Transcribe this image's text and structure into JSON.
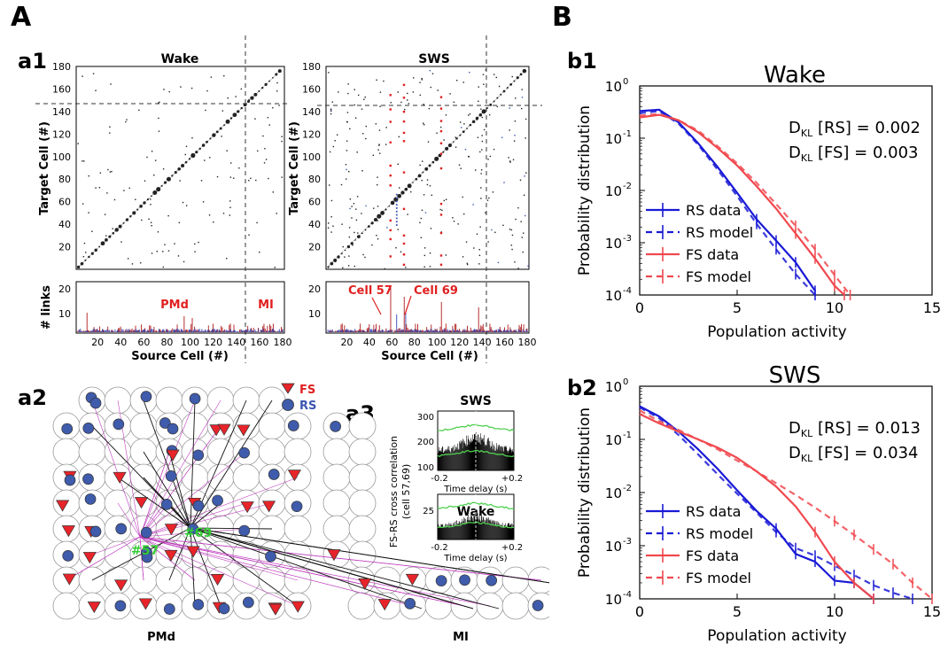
{
  "labels": {
    "A": "A",
    "B": "B",
    "a1": "a1",
    "a2": "a2",
    "a3": "a3",
    "b1": "b1",
    "b2": "b2"
  },
  "a1": {
    "wake_title": "Wake",
    "sws_title": "SWS",
    "ylabel": "Target Cell (#)",
    "xlabel": "Source Cell (#)",
    "links_label": "# links",
    "yticks": [
      "20",
      "40",
      "60",
      "80",
      "100",
      "120",
      "140",
      "160",
      "180"
    ],
    "xticks": [
      "20",
      "40",
      "60",
      "80",
      "100",
      "120",
      "140",
      "160",
      "180"
    ],
    "links_ticks_wake": [
      "10",
      "20"
    ],
    "links_ticks_sws": [
      "10",
      "20"
    ],
    "pmd_label": "PMd",
    "mi_label": "MI",
    "cell57_label": "Cell 57",
    "cell69_label": "Cell 69",
    "boundary_cell": 145
  },
  "a2": {
    "legend_fs": "FS",
    "legend_rs": "RS",
    "label_69": "#69",
    "label_57": "#57",
    "pmd": "PMd",
    "mi": "MI"
  },
  "a3": {
    "ylabel_line1": "FS-RS cross correlation",
    "ylabel_line2": "(cell 57,69)",
    "sws_title": "SWS",
    "wake_title": "Wake",
    "xlabel": "Time delay   (s)",
    "xticks": [
      "-0.2",
      "+0.2"
    ],
    "sws_yticks": [
      "300",
      "200",
      "100"
    ],
    "wake_yticks": [
      "25"
    ]
  },
  "colors": {
    "rs": "#1a1ad6",
    "fs": "#f0494f",
    "red_mark": "#e02020",
    "blue_mark": "#3c55b0",
    "green": "#40c040",
    "node_rs": "#3f5bab",
    "node_fs": "#e8242a",
    "magenta": "#c040c0"
  },
  "chart_data": [
    {
      "type": "line",
      "title": "Wake",
      "xlabel": "Population activity",
      "ylabel": "Probability distribution",
      "yscale": "log",
      "xlim": [
        0,
        15
      ],
      "ylim": [
        0.0001,
        1
      ],
      "xticks": [
        "0",
        "5",
        "10",
        "15"
      ],
      "yticks": [
        "10",
        "10",
        "10",
        "10",
        "10"
      ],
      "ytick_exps": [
        "0",
        "-1",
        "-2",
        "-3",
        "-4"
      ],
      "annotations": [
        "D",
        "KL",
        " [RS] = 0.002",
        " [FS] = 0.003"
      ],
      "legend_position": "bottom-left",
      "series": [
        {
          "name": "RS data",
          "style": "solid",
          "color": "#1a1ad6",
          "x": [
            0,
            1,
            2,
            3,
            4,
            5,
            6,
            7,
            8,
            9
          ],
          "y": [
            0.33,
            0.35,
            0.2,
            0.08,
            0.028,
            0.009,
            0.0028,
            0.0011,
            0.00042,
            0.00012
          ]
        },
        {
          "name": "RS model",
          "style": "dashed",
          "color": "#1a1ad6",
          "x": [
            0,
            1,
            2,
            3,
            4,
            5,
            6,
            7,
            8,
            9
          ],
          "y": [
            0.3,
            0.33,
            0.19,
            0.075,
            0.025,
            0.0078,
            0.0023,
            0.00075,
            0.00025,
            0.0001
          ]
        },
        {
          "name": "FS data",
          "style": "solid",
          "color": "#f0494f",
          "x": [
            0,
            1,
            2,
            3,
            4,
            5,
            6,
            7,
            8,
            9,
            10,
            10.5
          ],
          "y": [
            0.25,
            0.28,
            0.22,
            0.13,
            0.065,
            0.03,
            0.012,
            0.0045,
            0.0015,
            0.0005,
            0.00015,
            0.0001
          ]
        },
        {
          "name": "FS model",
          "style": "dashed",
          "color": "#f0494f",
          "x": [
            0,
            1,
            2,
            3,
            4,
            5,
            6,
            7,
            8,
            9,
            10,
            10.8
          ],
          "y": [
            0.27,
            0.29,
            0.22,
            0.14,
            0.07,
            0.033,
            0.014,
            0.0055,
            0.0021,
            0.00075,
            0.00024,
            0.0001
          ]
        }
      ]
    },
    {
      "type": "line",
      "title": "SWS",
      "xlabel": "Population activity",
      "ylabel": "Probability distribution",
      "yscale": "log",
      "xlim": [
        0,
        15
      ],
      "ylim": [
        0.0001,
        1
      ],
      "xticks": [
        "0",
        "5",
        "10",
        "15"
      ],
      "yticks": [
        "10",
        "10",
        "10",
        "10",
        "10"
      ],
      "ytick_exps": [
        "0",
        "-1",
        "-2",
        "-3",
        "-4"
      ],
      "annotations": [
        "D",
        "KL",
        " [RS] = 0.013",
        " [FS] = 0.034"
      ],
      "legend_position": "bottom-left",
      "series": [
        {
          "name": "RS data",
          "style": "solid",
          "color": "#1a1ad6",
          "x": [
            0,
            1,
            2,
            3,
            4,
            5,
            6,
            7,
            8,
            9,
            10,
            11,
            12
          ],
          "y": [
            0.42,
            0.27,
            0.14,
            0.065,
            0.028,
            0.011,
            0.0045,
            0.0021,
            0.0007,
            0.0005,
            0.00022,
            0.0002,
            0.0001
          ]
        },
        {
          "name": "RS model",
          "style": "dashed",
          "color": "#1a1ad6",
          "x": [
            0,
            1,
            2,
            3,
            4,
            5,
            6,
            7,
            8,
            9,
            10,
            11,
            12,
            13,
            14
          ],
          "y": [
            0.4,
            0.25,
            0.12,
            0.052,
            0.022,
            0.0095,
            0.0042,
            0.0018,
            0.0009,
            0.00065,
            0.00042,
            0.00028,
            0.00018,
            0.00013,
            0.0001
          ]
        },
        {
          "name": "FS data",
          "style": "solid",
          "color": "#f0494f",
          "x": [
            0,
            1,
            2,
            3,
            4,
            5,
            6,
            7,
            8,
            9,
            10,
            11,
            12
          ],
          "y": [
            0.3,
            0.2,
            0.14,
            0.1,
            0.07,
            0.045,
            0.025,
            0.013,
            0.0055,
            0.0018,
            0.0005,
            0.0002,
            0.0001
          ]
        },
        {
          "name": "FS model",
          "style": "dashed",
          "color": "#f0494f",
          "x": [
            0,
            1,
            2,
            3,
            4,
            5,
            6,
            7,
            8,
            9,
            10,
            11,
            12,
            13,
            14,
            15
          ],
          "y": [
            0.35,
            0.22,
            0.15,
            0.1,
            0.065,
            0.04,
            0.025,
            0.015,
            0.009,
            0.0052,
            0.0029,
            0.0016,
            0.00085,
            0.00045,
            0.0002,
            0.0001
          ]
        }
      ]
    }
  ]
}
